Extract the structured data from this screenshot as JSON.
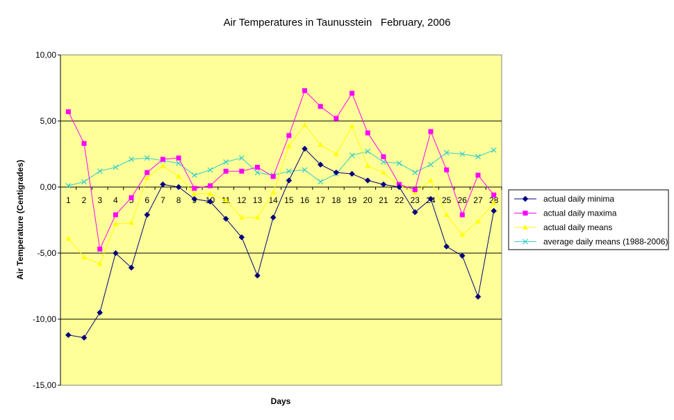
{
  "chart_data": {
    "type": "line",
    "title": "Air Temperatures in Taunusstein   February, 2006",
    "xlabel": "Days",
    "ylabel": "Air Temperature (Centigrades)",
    "ylim": [
      -15,
      10
    ],
    "yticks": [
      10,
      5,
      0,
      -5,
      -10,
      -15
    ],
    "ytick_labels": [
      "10,00",
      "5,00",
      "0,00",
      "-5,00",
      "-10,00",
      "-15,00"
    ],
    "x": [
      1,
      2,
      3,
      4,
      5,
      6,
      7,
      8,
      9,
      10,
      11,
      12,
      13,
      14,
      15,
      16,
      17,
      18,
      19,
      20,
      21,
      22,
      23,
      24,
      25,
      26,
      27,
      28
    ],
    "grid": "horizontal major",
    "plot_background": "#ffff99",
    "legend_position": "right",
    "series": [
      {
        "name": "actual daily minima",
        "color": "#000080",
        "marker": "diamond",
        "values": [
          -11.2,
          -11.4,
          -9.5,
          -5.0,
          -6.1,
          -2.1,
          0.2,
          0.0,
          -0.9,
          -1.1,
          -2.4,
          -3.8,
          -6.7,
          -2.3,
          0.5,
          2.9,
          1.7,
          1.1,
          1.0,
          0.5,
          0.2,
          0.0,
          -1.9,
          -0.9,
          -4.5,
          -5.2,
          -8.3,
          -1.8
        ]
      },
      {
        "name": "actual daily maxima",
        "color": "#ff00ff",
        "marker": "square",
        "values": [
          5.7,
          3.3,
          -4.7,
          -2.1,
          -0.8,
          1.1,
          2.1,
          2.2,
          -0.1,
          0.1,
          1.2,
          1.2,
          1.5,
          0.8,
          3.9,
          7.3,
          6.1,
          5.2,
          7.1,
          4.1,
          2.3,
          0.2,
          -0.2,
          4.2,
          1.3,
          -2.1,
          0.9,
          -0.6
        ]
      },
      {
        "name": "actual daily means",
        "color": "#ffff00",
        "marker": "triangle",
        "values": [
          -3.9,
          -5.3,
          -5.8,
          -2.8,
          -2.7,
          0.7,
          1.6,
          0.8,
          -0.5,
          -0.5,
          -1.0,
          -2.3,
          -2.3,
          -0.4,
          3.1,
          4.7,
          3.2,
          2.5,
          4.6,
          1.6,
          1.1,
          0.1,
          -0.4,
          0.5,
          -2.1,
          -3.6,
          -2.6,
          -1.2
        ]
      },
      {
        "name": "average daily means (1988-2006)",
        "color": "#33cccc",
        "marker": "x",
        "values": [
          0.1,
          0.4,
          1.2,
          1.5,
          2.1,
          2.2,
          2.0,
          1.8,
          0.9,
          1.3,
          1.9,
          2.2,
          1.1,
          0.9,
          1.2,
          1.3,
          0.4,
          1.0,
          2.4,
          2.7,
          1.9,
          1.8,
          1.1,
          1.7,
          2.6,
          2.5,
          2.3,
          2.8
        ]
      }
    ]
  }
}
